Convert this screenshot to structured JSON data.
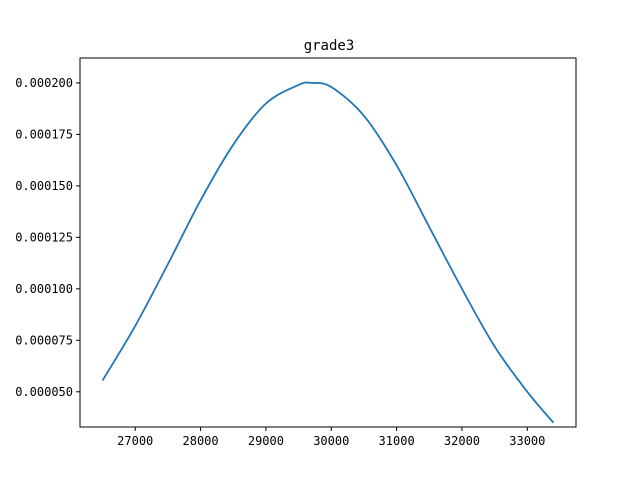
{
  "chart_data": {
    "type": "line",
    "title": "grade3",
    "xlabel": "",
    "ylabel": "",
    "xlim": [
      26155,
      33745
    ],
    "ylim": [
      3.29e-05,
      0.0002121
    ],
    "grid": false,
    "x_ticks": [
      27000,
      28000,
      29000,
      30000,
      31000,
      32000,
      33000
    ],
    "x_tick_labels": [
      "27000",
      "28000",
      "29000",
      "30000",
      "31000",
      "32000",
      "33000"
    ],
    "y_ticks": [
      5e-05,
      7.5e-05,
      0.0001,
      0.000125,
      0.00015,
      0.000175,
      0.0002
    ],
    "y_tick_labels": [
      "0.000050",
      "0.000075",
      "0.000100",
      "0.000125",
      "0.000150",
      "0.000175",
      "0.000200"
    ],
    "series": [
      {
        "color": "#1f77b4",
        "x": [
          26500,
          27000,
          27500,
          28000,
          28500,
          29000,
          29500,
          29700,
          30000,
          30500,
          31000,
          31500,
          32000,
          32500,
          33000,
          33400
        ],
        "y": [
          5.55e-05,
          8.2e-05,
          0.000112,
          0.000143,
          0.00017,
          0.00019,
          0.000199,
          0.0002,
          0.000198,
          0.000184,
          0.00016,
          0.00013,
          0.0001,
          7.2e-05,
          5e-05,
          3.5e-05
        ]
      }
    ]
  }
}
